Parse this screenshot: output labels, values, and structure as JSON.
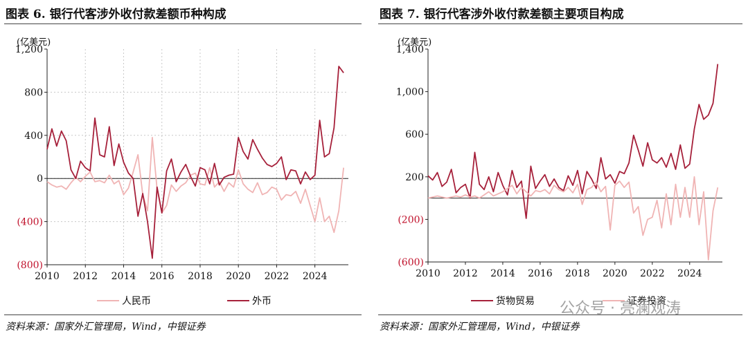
{
  "left": {
    "title": "图表 6. 银行代客涉外收付款差额币种构成",
    "source": "资料来源：国家外汇管理局，Wind，中银证券",
    "chart_data": {
      "type": "line",
      "unit_label": "(亿美元)",
      "ylim": [
        -800,
        1200
      ],
      "yticks": [
        1200,
        800,
        400,
        0,
        -400,
        -800
      ],
      "ytick_labels": [
        "1,200",
        "800",
        "400",
        "0",
        "(400)",
        "(800)"
      ],
      "xlim": [
        2010,
        2025.75
      ],
      "xticks": [
        2010,
        2012,
        2014,
        2016,
        2018,
        2020,
        2022,
        2024
      ],
      "grid": true,
      "legend_position": "bottom",
      "series": [
        {
          "name": "人民币",
          "color": "#f0b4b4",
          "x": [
            2010.0,
            2010.25,
            2010.5,
            2010.75,
            2011.0,
            2011.25,
            2011.5,
            2011.75,
            2012.0,
            2012.25,
            2012.5,
            2012.75,
            2013.0,
            2013.25,
            2013.5,
            2013.75,
            2014.0,
            2014.25,
            2014.5,
            2014.75,
            2015.0,
            2015.25,
            2015.5,
            2015.75,
            2016.0,
            2016.25,
            2016.5,
            2016.75,
            2017.0,
            2017.25,
            2017.5,
            2017.75,
            2018.0,
            2018.25,
            2018.5,
            2018.75,
            2019.0,
            2019.25,
            2019.5,
            2019.75,
            2020.0,
            2020.25,
            2020.5,
            2020.75,
            2021.0,
            2021.25,
            2021.5,
            2021.75,
            2022.0,
            2022.25,
            2022.5,
            2022.75,
            2023.0,
            2023.25,
            2023.5,
            2023.75,
            2024.0,
            2024.25,
            2024.5,
            2024.75,
            2025.0,
            2025.25,
            2025.5
          ],
          "y": [
            -30,
            -60,
            -80,
            -70,
            -100,
            -40,
            10,
            -30,
            20,
            60,
            -30,
            -20,
            -40,
            30,
            -50,
            -20,
            -150,
            -90,
            60,
            220,
            -150,
            -300,
            380,
            -100,
            -320,
            -250,
            -60,
            -120,
            -70,
            -40,
            30,
            50,
            -50,
            -60,
            100,
            -80,
            -30,
            -120,
            -40,
            -80,
            80,
            -50,
            -100,
            -130,
            -40,
            -150,
            -130,
            -80,
            -100,
            -200,
            -150,
            -160,
            -120,
            -230,
            -100,
            -250,
            -400,
            -180,
            -400,
            -350,
            -500,
            -300,
            100
          ]
        },
        {
          "name": "外币",
          "color": "#a6203a",
          "x": [
            2010.0,
            2010.25,
            2010.5,
            2010.75,
            2011.0,
            2011.25,
            2011.5,
            2011.75,
            2012.0,
            2012.25,
            2012.5,
            2012.75,
            2013.0,
            2013.25,
            2013.5,
            2013.75,
            2014.0,
            2014.25,
            2014.5,
            2014.75,
            2015.0,
            2015.25,
            2015.5,
            2015.75,
            2016.0,
            2016.25,
            2016.5,
            2016.75,
            2017.0,
            2017.25,
            2017.5,
            2017.75,
            2018.0,
            2018.25,
            2018.5,
            2018.75,
            2019.0,
            2019.25,
            2019.5,
            2019.75,
            2020.0,
            2020.25,
            2020.5,
            2020.75,
            2021.0,
            2021.25,
            2021.5,
            2021.75,
            2022.0,
            2022.25,
            2022.5,
            2022.75,
            2023.0,
            2023.25,
            2023.5,
            2023.75,
            2024.0,
            2024.25,
            2024.5,
            2024.75,
            2025.0,
            2025.25,
            2025.5
          ],
          "y": [
            270,
            460,
            300,
            440,
            350,
            80,
            0,
            160,
            100,
            70,
            560,
            220,
            200,
            480,
            120,
            320,
            150,
            50,
            0,
            -350,
            -140,
            -400,
            -740,
            -80,
            -320,
            70,
            180,
            -30,
            60,
            130,
            20,
            -70,
            100,
            80,
            -50,
            140,
            -60,
            10,
            30,
            40,
            380,
            250,
            180,
            360,
            270,
            190,
            130,
            110,
            140,
            200,
            -10,
            80,
            70,
            -50,
            60,
            -10,
            30,
            540,
            200,
            230,
            470,
            1040,
            980
          ]
        }
      ]
    }
  },
  "right": {
    "title": "图表 7. 银行代客涉外收付款差额主要项目构成",
    "source": "资料来源：国家外汇管理局，Wind，中银证券",
    "watermark": "公众号 · 亮澜观涛",
    "chart_data": {
      "type": "line",
      "unit_label": "(亿美元)",
      "ylim": [
        -600,
        1400
      ],
      "yticks": [
        1400,
        1000,
        600,
        200,
        -200,
        -600
      ],
      "ytick_labels": [
        "1,400",
        "1,000",
        "600",
        "200",
        "(200)",
        "(600)"
      ],
      "xlim": [
        2010,
        2025.75
      ],
      "xticks": [
        2010,
        2012,
        2014,
        2016,
        2018,
        2020,
        2022,
        2024
      ],
      "grid": false,
      "legend_position": "bottom",
      "series": [
        {
          "name": "货物贸易",
          "color": "#a6203a",
          "x": [
            2010.0,
            2010.25,
            2010.5,
            2010.75,
            2011.0,
            2011.25,
            2011.5,
            2011.75,
            2012.0,
            2012.25,
            2012.5,
            2012.75,
            2013.0,
            2013.25,
            2013.5,
            2013.75,
            2014.0,
            2014.25,
            2014.5,
            2014.75,
            2015.0,
            2015.25,
            2015.5,
            2015.75,
            2016.0,
            2016.25,
            2016.5,
            2016.75,
            2017.0,
            2017.25,
            2017.5,
            2017.75,
            2018.0,
            2018.25,
            2018.5,
            2018.75,
            2019.0,
            2019.25,
            2019.5,
            2019.75,
            2020.0,
            2020.25,
            2020.5,
            2020.75,
            2021.0,
            2021.25,
            2021.5,
            2021.75,
            2022.0,
            2022.25,
            2022.5,
            2022.75,
            2023.0,
            2023.25,
            2023.5,
            2023.75,
            2024.0,
            2024.25,
            2024.5,
            2024.75,
            2025.0,
            2025.25,
            2025.5
          ],
          "y": [
            210,
            170,
            240,
            110,
            150,
            270,
            50,
            100,
            130,
            0,
            430,
            130,
            80,
            200,
            60,
            240,
            120,
            30,
            260,
            100,
            160,
            -190,
            300,
            90,
            160,
            220,
            110,
            180,
            100,
            70,
            210,
            120,
            260,
            40,
            250,
            180,
            90,
            380,
            180,
            220,
            140,
            250,
            230,
            330,
            590,
            450,
            300,
            520,
            360,
            330,
            380,
            290,
            420,
            270,
            500,
            280,
            320,
            650,
            880,
            740,
            780,
            890,
            1260
          ]
        },
        {
          "name": "证券投资",
          "color": "#f0b4b4",
          "x": [
            2010.0,
            2010.25,
            2010.5,
            2010.75,
            2011.0,
            2011.25,
            2011.5,
            2011.75,
            2012.0,
            2012.25,
            2012.5,
            2012.75,
            2013.0,
            2013.25,
            2013.5,
            2013.75,
            2014.0,
            2014.25,
            2014.5,
            2014.75,
            2015.0,
            2015.25,
            2015.5,
            2015.75,
            2016.0,
            2016.25,
            2016.5,
            2016.75,
            2017.0,
            2017.25,
            2017.5,
            2017.75,
            2018.0,
            2018.25,
            2018.5,
            2018.75,
            2019.0,
            2019.25,
            2019.5,
            2019.75,
            2020.0,
            2020.25,
            2020.5,
            2020.75,
            2021.0,
            2021.25,
            2021.5,
            2021.75,
            2022.0,
            2022.25,
            2022.5,
            2022.75,
            2023.0,
            2023.25,
            2023.5,
            2023.75,
            2024.0,
            2024.25,
            2024.5,
            2024.75,
            2025.0,
            2025.25,
            2025.5
          ],
          "y": [
            0,
            10,
            20,
            10,
            0,
            10,
            20,
            10,
            30,
            10,
            20,
            0,
            30,
            60,
            20,
            40,
            60,
            90,
            120,
            40,
            100,
            60,
            20,
            70,
            60,
            80,
            40,
            120,
            80,
            60,
            100,
            50,
            130,
            -60,
            80,
            100,
            150,
            60,
            110,
            -300,
            120,
            160,
            100,
            150,
            -140,
            -80,
            -350,
            -200,
            -180,
            -20,
            -280,
            40,
            -250,
            130,
            -180,
            100,
            -180,
            200,
            -250,
            60,
            -580,
            -120,
            100
          ]
        }
      ]
    }
  }
}
